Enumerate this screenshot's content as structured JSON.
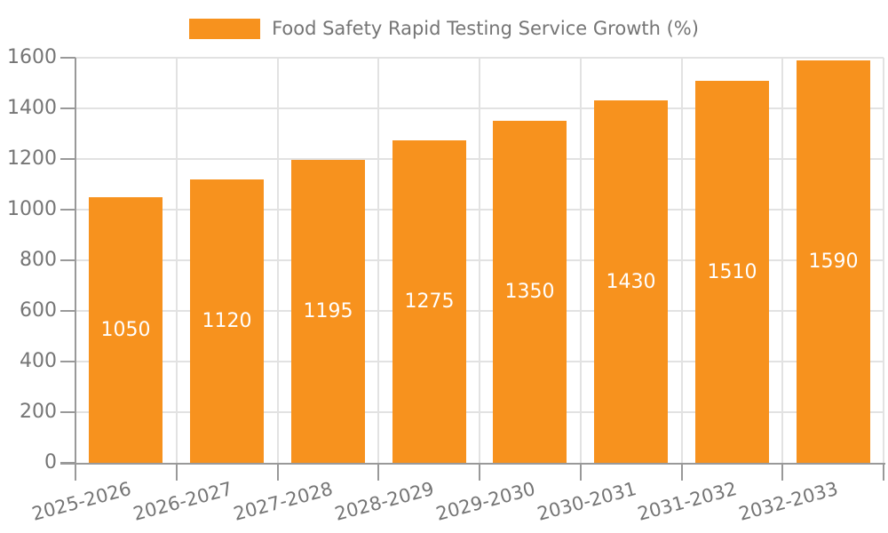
{
  "legend": {
    "label": "Food Safety Rapid Testing Service Growth (%)",
    "swatch_color": "#F7921E"
  },
  "colors": {
    "bar": "#F7921E",
    "bar_label": "#FFFFFF",
    "grid": "#E2E2E2",
    "axis": "#999999",
    "text": "#757575",
    "background": "#FFFFFF"
  },
  "chart_data": {
    "type": "bar",
    "title": "Food Safety Rapid Testing Service Growth (%)",
    "categories": [
      "2025-2026",
      "2026-2027",
      "2027-2028",
      "2028-2029",
      "2029-2030",
      "2030-2031",
      "2031-2032",
      "2032-2033"
    ],
    "series": [
      {
        "name": "Food Safety Rapid Testing Service Growth (%)",
        "values": [
          1050,
          1120,
          1195,
          1275,
          1350,
          1430,
          1510,
          1590
        ],
        "color": "#F7921E"
      }
    ],
    "xlabel": "",
    "ylabel": "",
    "ylim": [
      0,
      1600
    ],
    "yticks": [
      0,
      200,
      400,
      600,
      800,
      1000,
      1200,
      1400,
      1600
    ],
    "grid": true,
    "legend_position": "top",
    "value_labels": "inside-center",
    "x_tick_label_rotation_deg": -15
  }
}
